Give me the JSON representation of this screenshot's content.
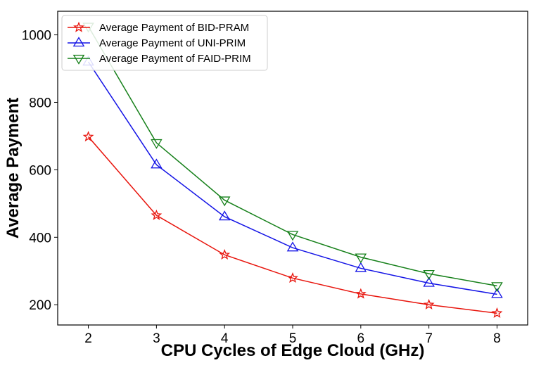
{
  "chart_data": {
    "type": "line",
    "xlabel": "CPU Cycles of Edge Cloud (GHz)",
    "ylabel": "Average Payment",
    "x": [
      2,
      3,
      4,
      5,
      6,
      7,
      8
    ],
    "xlim": [
      1.55,
      8.45
    ],
    "ylim": [
      140,
      1070
    ],
    "xticks": [
      2,
      3,
      4,
      5,
      6,
      7,
      8
    ],
    "yticks": [
      200,
      400,
      600,
      800,
      1000
    ],
    "grid": false,
    "legend_position": "top-left",
    "series": [
      {
        "name": "Average Payment of BID-PRAM",
        "color": "#e8140c",
        "marker": "star",
        "values": [
          698,
          465,
          348,
          279,
          232,
          200,
          175
        ]
      },
      {
        "name": "Average Payment of UNI-PRIM",
        "color": "#1414e6",
        "marker": "triangle-up",
        "values": [
          920,
          615,
          461,
          369,
          308,
          264,
          231
        ]
      },
      {
        "name": "Average Payment of FAID-PRIM",
        "color": "#16801a",
        "marker": "triangle-down",
        "values": [
          1025,
          680,
          510,
          408,
          341,
          292,
          256
        ]
      }
    ]
  }
}
